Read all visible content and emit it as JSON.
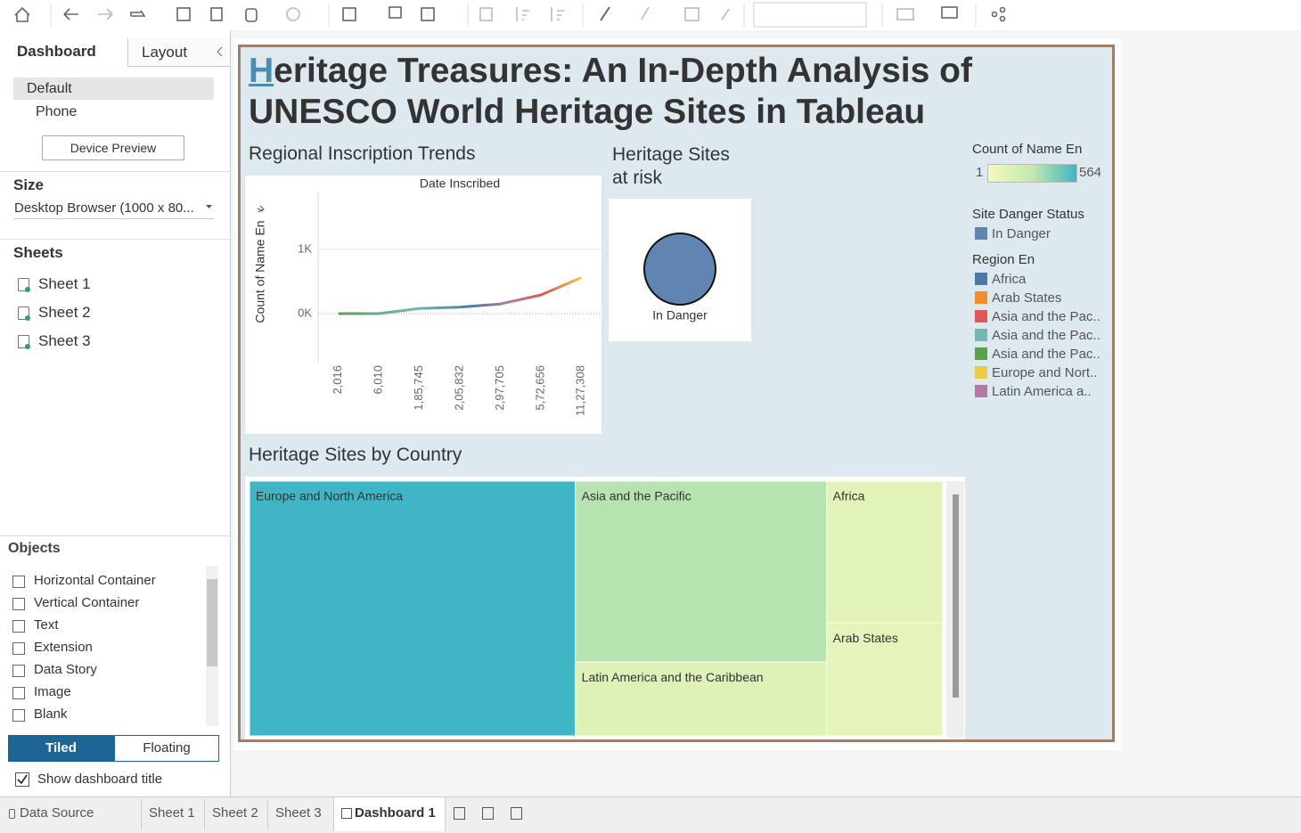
{
  "left_panel": {
    "tabs": [
      "Dashboard",
      "Layout"
    ],
    "devices": [
      "Default",
      "Phone"
    ],
    "device_preview": "Device Preview",
    "size_heading": "Size",
    "size_value": "Desktop Browser (1000 x 80...",
    "sheets_heading": "Sheets",
    "sheets": [
      "Sheet 1",
      "Sheet 2",
      "Sheet 3"
    ],
    "objects_heading": "Objects",
    "objects": [
      "Horizontal Container",
      "Vertical Container",
      "Text",
      "Extension",
      "Data Story",
      "Image",
      "Blank"
    ],
    "layout_modes": [
      "Tiled",
      "Floating"
    ],
    "show_title": "Show dashboard title"
  },
  "dashboard": {
    "title": "Heritage Treasures: An In-Depth Analysis of UNESCO World Heritage Sites in Tableau",
    "legends": {
      "count": {
        "title": "Count of Name En",
        "min": 1,
        "max": 564,
        "colors": [
          "#f4fabf",
          "#c3e8ae",
          "#3fb5c5"
        ]
      },
      "danger": {
        "title": "Site Danger Status",
        "items": [
          {
            "label": "In Danger",
            "color": "#6185b3"
          }
        ]
      },
      "region": {
        "title": "Region En",
        "items": [
          {
            "label": "Africa",
            "color": "#4e79a7"
          },
          {
            "label": "Arab States",
            "color": "#f28e2b"
          },
          {
            "label": "Asia and the Pac..",
            "color": "#e15759"
          },
          {
            "label": "Asia and the Pac..",
            "color": "#76b7b2"
          },
          {
            "label": "Asia and the Pac..",
            "color": "#59a14f"
          },
          {
            "label": "Europe and Nort..",
            "color": "#edc948"
          },
          {
            "label": "Latin America a..",
            "color": "#b07aa1"
          }
        ]
      }
    }
  },
  "chart_data": [
    {
      "type": "line",
      "title": "Regional Inscription Trends",
      "x_label": "Date Inscribed",
      "y_label": "Count of Name En",
      "categories": [
        "2,016",
        "6,010",
        "1,85,745",
        "2,05,832",
        "2,97,705",
        "5,72,656",
        "11,27,308"
      ],
      "values": [
        0,
        0,
        80,
        100,
        150,
        290,
        560
      ],
      "ylim": [
        -778,
        1903
      ],
      "yticks": [
        {
          "value": 0,
          "label": "0K"
        },
        {
          "value": 1000,
          "label": "1K"
        }
      ]
    },
    {
      "type": "bubble",
      "title": "Heritage Sites at risk",
      "categories": [
        "In Danger"
      ],
      "color": "#6185b3"
    },
    {
      "type": "treemap",
      "title": "Heritage Sites by Country",
      "categories": [
        "Europe and North America",
        "Asia and the Pacific",
        "Latin America and the Caribbean",
        "Africa",
        "Arab States"
      ],
      "values": [
        564,
        309,
        126,
        112,
        89
      ]
    }
  ],
  "bottom_tabs": [
    "Data Source",
    "Sheet 1",
    "Sheet 2",
    "Sheet 3",
    "Dashboard 1"
  ]
}
